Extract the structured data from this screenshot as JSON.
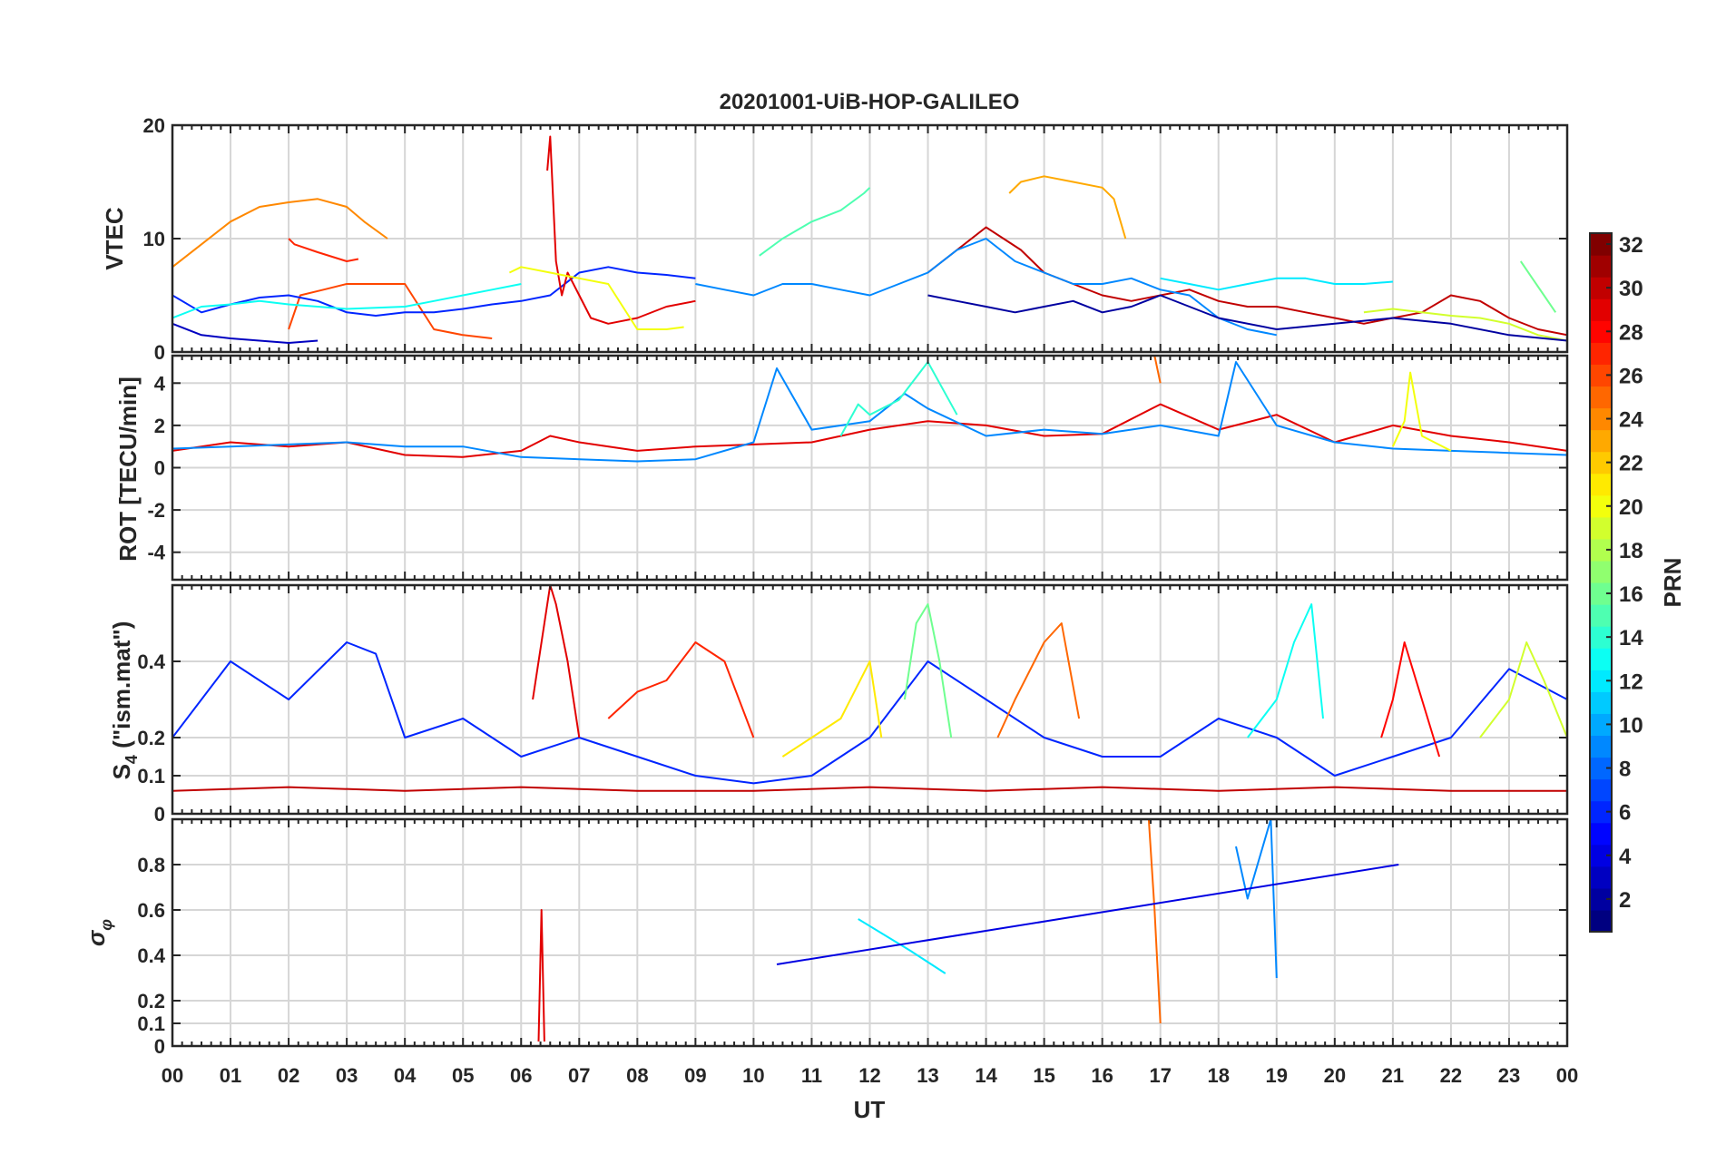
{
  "chart_data": {
    "type": "line",
    "title": "20201001-UiB-HOP-GALILEO",
    "xlabel": "UT",
    "x_tick_labels": [
      "00",
      "01",
      "02",
      "03",
      "04",
      "05",
      "06",
      "07",
      "08",
      "09",
      "10",
      "11",
      "12",
      "13",
      "14",
      "15",
      "16",
      "17",
      "18",
      "19",
      "20",
      "21",
      "22",
      "23",
      "00"
    ],
    "xlim_hours": [
      0,
      24
    ],
    "grid": true,
    "colorbar": {
      "label": "PRN",
      "range": [
        1,
        32
      ],
      "tick_labels": [
        "2",
        "4",
        "6",
        "8",
        "10",
        "12",
        "14",
        "16",
        "18",
        "20",
        "22",
        "24",
        "26",
        "28",
        "30",
        "32"
      ],
      "colormap": "jet"
    },
    "panels": [
      {
        "name": "vtec",
        "ylabel": "VTEC",
        "ylim": [
          0,
          20
        ],
        "yticks": [
          0,
          10,
          20
        ],
        "ytick_labels": [
          "0",
          "10",
          "20"
        ],
        "series": [
          {
            "prn": 24,
            "x": [
              0,
              0.5,
              1,
              1.5,
              2,
              2.5,
              3,
              3.3,
              3.7
            ],
            "y": [
              7.5,
              9.5,
              11.5,
              12.8,
              13.2,
              13.5,
              12.8,
              11.5,
              10
            ]
          },
          {
            "prn": 27,
            "x": [
              2.0,
              2.1,
              2.5,
              3.0,
              3.2
            ],
            "y": [
              10,
              9.5,
              8.8,
              8.0,
              8.2
            ]
          },
          {
            "prn": 26,
            "x": [
              2.0,
              2.2,
              2.6,
              3.0,
              3.4,
              4.0,
              4.5,
              5.0,
              5.5
            ],
            "y": [
              2,
              5,
              5.5,
              6,
              6,
              6,
              2,
              1.5,
              1.2
            ]
          },
          {
            "prn": 6,
            "x": [
              0,
              0.5,
              1,
              1.5,
              2,
              2.5,
              3,
              3.5,
              4,
              4.5,
              5,
              5.5,
              6,
              6.5,
              7,
              7.5,
              8,
              8.5,
              9
            ],
            "y": [
              5,
              3.5,
              4.2,
              4.8,
              5,
              4.5,
              3.5,
              3.2,
              3.5,
              3.5,
              3.8,
              4.2,
              4.5,
              5,
              7,
              7.5,
              7,
              6.8,
              6.5
            ]
          },
          {
            "prn": 13,
            "x": [
              0,
              0.5,
              1,
              1.5,
              2,
              3,
              4,
              4.5,
              5,
              5.5,
              6
            ],
            "y": [
              3,
              4,
              4.2,
              4.5,
              4.2,
              3.8,
              4,
              4.5,
              5,
              5.5,
              6
            ]
          },
          {
            "prn": 3,
            "x": [
              0,
              0.5,
              1,
              1.5,
              2,
              2.5
            ],
            "y": [
              2.5,
              1.5,
              1.2,
              1,
              0.8,
              1
            ]
          },
          {
            "prn": 29,
            "x": [
              6.45,
              6.5,
              6.6,
              6.7,
              6.8,
              7,
              7.2,
              7.5,
              8,
              8.5,
              9
            ],
            "y": [
              16,
              19,
              8,
              5,
              7,
              5,
              3,
              2.5,
              3,
              4,
              4.5
            ]
          },
          {
            "prn": 20,
            "x": [
              5.8,
              6,
              6.5,
              7,
              7.5,
              8,
              8.5,
              8.8
            ],
            "y": [
              7,
              7.5,
              7,
              6.5,
              6,
              2,
              2,
              2.2
            ]
          },
          {
            "prn": 15,
            "x": [
              10.1,
              10.5,
              11,
              11.5,
              11.9,
              12
            ],
            "y": [
              8.5,
              10,
              11.5,
              12.5,
              14,
              14.5
            ]
          },
          {
            "prn": 23,
            "x": [
              14.4,
              14.6,
              15,
              15.5,
              16,
              16.2,
              16.4
            ],
            "y": [
              14,
              15,
              15.5,
              15,
              14.5,
              13.5,
              10
            ]
          },
          {
            "prn": 30,
            "x": [
              13,
              13.5,
              14,
              14.3,
              14.6,
              15,
              15.5,
              16,
              16.5,
              17,
              17.5,
              18,
              18.5,
              19,
              19.5,
              20,
              20.5,
              21,
              21.5,
              22,
              22.5,
              23,
              23.5,
              24
            ],
            "y": [
              7,
              9,
              11,
              10,
              9,
              7,
              6,
              5,
              4.5,
              5,
              5.5,
              4.5,
              4,
              4,
              3.5,
              3,
              2.5,
              3,
              3.5,
              5,
              4.5,
              3,
              2,
              1.5
            ]
          },
          {
            "prn": 9,
            "x": [
              9,
              9.5,
              10,
              10.5,
              11,
              11.5,
              12,
              12.5,
              13,
              13.5,
              14,
              14.5,
              15,
              15.5,
              16,
              16.5,
              17,
              17.5,
              18,
              18.5,
              19
            ],
            "y": [
              6,
              5.5,
              5,
              6,
              6,
              5.5,
              5,
              6,
              7,
              9,
              10,
              8,
              7,
              6,
              6,
              6.5,
              5.5,
              5,
              3,
              2,
              1.5
            ]
          },
          {
            "prn": 12,
            "x": [
              17,
              17.5,
              18,
              18.5,
              19,
              19.5,
              20,
              20.5,
              21
            ],
            "y": [
              6.5,
              6,
              5.5,
              6,
              6.5,
              6.5,
              6,
              6,
              6.2
            ]
          },
          {
            "prn": 19,
            "x": [
              20.5,
              21,
              21.5,
              22,
              22.5,
              23,
              23.5,
              24
            ],
            "y": [
              3.5,
              3.8,
              3.5,
              3.2,
              3,
              2.5,
              1.5,
              1
            ]
          },
          {
            "prn": 16,
            "x": [
              23.2,
              23.4,
              23.6,
              23.8
            ],
            "y": [
              8,
              6.5,
              5,
              3.5
            ]
          },
          {
            "prn": 2,
            "x": [
              13,
              13.5,
              14,
              14.5,
              15,
              15.5,
              16,
              16.5,
              17,
              18,
              19,
              20,
              21,
              22,
              23,
              24
            ],
            "y": [
              5,
              4.5,
              4,
              3.5,
              4,
              4.5,
              3.5,
              4,
              5,
              3,
              2,
              2.5,
              3,
              2.5,
              1.5,
              1
            ]
          }
        ]
      },
      {
        "name": "rot",
        "ylabel": "ROT [TECU/min]",
        "ylim": [
          -5.3,
          5.3
        ],
        "yticks": [
          -4,
          -2,
          0,
          2,
          4
        ],
        "ytick_labels": [
          "-4",
          "-2",
          "0",
          "2",
          "4"
        ],
        "series": [
          {
            "prn": 29,
            "x": [
              0,
              1,
              2,
              3,
              4,
              5,
              6,
              6.5,
              7,
              8,
              9,
              10,
              11,
              12,
              13,
              14,
              15,
              16,
              17,
              18,
              19,
              20,
              21,
              22,
              23,
              24
            ],
            "y": [
              0.8,
              1.2,
              1.0,
              1.2,
              0.6,
              0.5,
              0.8,
              1.5,
              1.2,
              0.8,
              1.0,
              1.1,
              1.2,
              1.8,
              2.2,
              2.0,
              1.5,
              1.6,
              3.0,
              1.8,
              2.5,
              1.2,
              2.0,
              1.5,
              1.2,
              0.8
            ]
          },
          {
            "prn": 9,
            "x": [
              0,
              1,
              2,
              3,
              4,
              5,
              6,
              7,
              8,
              9,
              10,
              10.4,
              11,
              12,
              12.6,
              13,
              14,
              15,
              16,
              17,
              18,
              18.3,
              19,
              20,
              21,
              22,
              23,
              24
            ],
            "y": [
              0.9,
              1.0,
              1.1,
              1.2,
              1.0,
              1.0,
              0.5,
              0.4,
              0.3,
              0.4,
              1.2,
              4.7,
              1.8,
              2.2,
              3.5,
              2.8,
              1.5,
              1.8,
              1.6,
              2.0,
              1.5,
              5.0,
              2.0,
              1.2,
              0.9,
              0.8,
              0.7,
              0.6
            ]
          },
          {
            "prn": 25,
            "x": [
              16.5,
              16.6,
              16.7,
              16.8,
              16.9,
              17
            ],
            "y": [
              5.3,
              5.3,
              5.3,
              5.3,
              5.3,
              4.0
            ]
          },
          {
            "prn": 14,
            "x": [
              11.5,
              11.8,
              12,
              12.5,
              13,
              13.5
            ],
            "y": [
              1.5,
              3.0,
              2.5,
              3.2,
              5.0,
              2.5
            ]
          },
          {
            "prn": 20,
            "x": [
              21,
              21.2,
              21.3,
              21.5,
              22
            ],
            "y": [
              1.0,
              2.2,
              4.5,
              1.5,
              0.8
            ]
          }
        ]
      },
      {
        "name": "s4",
        "ylabel": "S4 (\"ism.mat\")",
        "ylabel_main": "S",
        "ylabel_sub": "4",
        "ylabel_rest": " (\"ism.mat\")",
        "ylim": [
          0,
          0.6
        ],
        "yticks": [
          0,
          0.1,
          0.2,
          0.4
        ],
        "ytick_labels": [
          "0",
          "0.1",
          "0.2",
          "0.4"
        ],
        "series": [
          {
            "prn": 6,
            "x": [
              0,
              1,
              2,
              3,
              3.5,
              4,
              5,
              6,
              7,
              8,
              9,
              10,
              11,
              12,
              13,
              14,
              15,
              16,
              17,
              18,
              19,
              20,
              21,
              22,
              23,
              24
            ],
            "y": [
              0.2,
              0.4,
              0.3,
              0.45,
              0.42,
              0.2,
              0.25,
              0.15,
              0.2,
              0.15,
              0.1,
              0.08,
              0.1,
              0.2,
              0.4,
              0.3,
              0.2,
              0.15,
              0.15,
              0.25,
              0.2,
              0.1,
              0.15,
              0.2,
              0.38,
              0.3
            ]
          },
          {
            "prn": 29,
            "x": [
              6.2,
              6.4,
              6.5,
              6.6,
              6.8,
              7
            ],
            "y": [
              0.3,
              0.5,
              0.6,
              0.55,
              0.4,
              0.2
            ]
          },
          {
            "prn": 27,
            "x": [
              7.5,
              8,
              8.5,
              9,
              9.5,
              10
            ],
            "y": [
              0.25,
              0.32,
              0.35,
              0.45,
              0.4,
              0.2
            ]
          },
          {
            "prn": 21,
            "x": [
              10.5,
              11,
              11.5,
              12,
              12.2
            ],
            "y": [
              0.15,
              0.2,
              0.25,
              0.4,
              0.2
            ]
          },
          {
            "prn": 16,
            "x": [
              12.6,
              12.8,
              13,
              13.2,
              13.4
            ],
            "y": [
              0.3,
              0.5,
              0.55,
              0.4,
              0.2
            ]
          },
          {
            "prn": 25,
            "x": [
              14.2,
              14.5,
              15,
              15.3,
              15.6
            ],
            "y": [
              0.2,
              0.3,
              0.45,
              0.5,
              0.25
            ]
          },
          {
            "prn": 13,
            "x": [
              18.5,
              19,
              19.3,
              19.6,
              19.8
            ],
            "y": [
              0.2,
              0.3,
              0.45,
              0.55,
              0.25
            ]
          },
          {
            "prn": 28,
            "x": [
              20.8,
              21,
              21.2,
              21.5,
              21.8
            ],
            "y": [
              0.2,
              0.3,
              0.45,
              0.3,
              0.15
            ]
          },
          {
            "prn": 19,
            "x": [
              22.5,
              23,
              23.3,
              23.6,
              24
            ],
            "y": [
              0.2,
              0.3,
              0.45,
              0.35,
              0.2
            ]
          },
          {
            "prn": 30,
            "x": [
              0,
              2,
              4,
              6,
              8,
              10,
              12,
              14,
              16,
              18,
              20,
              22,
              24
            ],
            "y": [
              0.06,
              0.07,
              0.06,
              0.07,
              0.06,
              0.06,
              0.07,
              0.06,
              0.07,
              0.06,
              0.07,
              0.06,
              0.06
            ]
          }
        ]
      },
      {
        "name": "sigma_phi",
        "ylabel": "σφ",
        "ylabel_main": "σ",
        "ylabel_sub": "φ",
        "ylim": [
          0,
          1.0
        ],
        "yticks": [
          0,
          0.1,
          0.2,
          0.4,
          0.6,
          0.8
        ],
        "ytick_labels": [
          "0",
          "0.1",
          "0.2",
          "0.4",
          "0.6",
          "0.8"
        ],
        "series": [
          {
            "prn": 29,
            "x": [
              6.3,
              6.35,
              6.4
            ],
            "y": [
              0.02,
              0.6,
              0.02
            ]
          },
          {
            "prn": 25,
            "x": [
              16.5,
              16.6,
              16.7,
              16.8,
              16.9,
              17.0
            ],
            "y": [
              1.0,
              1.0,
              1.0,
              1.0,
              0.6,
              0.1
            ]
          },
          {
            "prn": 9,
            "x": [
              18.3,
              18.5,
              18.9,
              19.0
            ],
            "y": [
              0.88,
              0.65,
              1.0,
              0.3
            ]
          },
          {
            "prn": 12,
            "x": [
              11.8,
              12.7,
              13.3
            ],
            "y": [
              0.56,
              0.42,
              0.32
            ]
          },
          {
            "prn": 4,
            "x": [
              10.4,
              21.1
            ],
            "y": [
              0.36,
              0.8
            ]
          }
        ]
      }
    ]
  }
}
